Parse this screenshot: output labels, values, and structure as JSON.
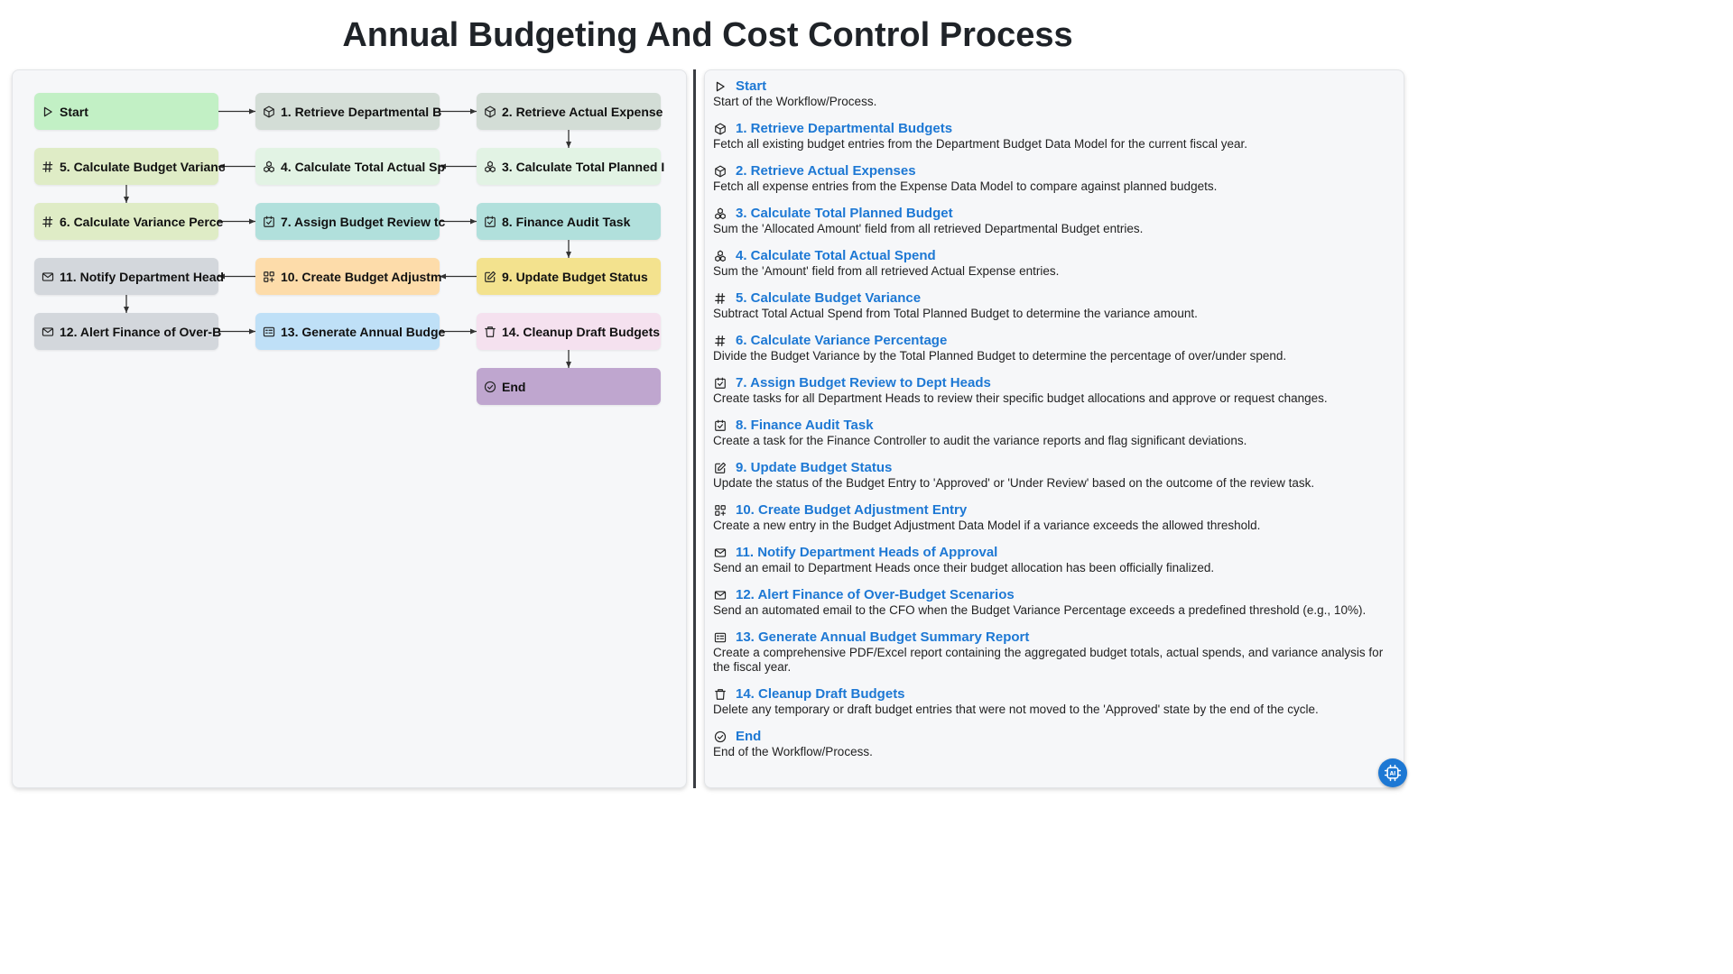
{
  "title": "Annual Budgeting And Cost Control Process",
  "nodes": [
    {
      "id": "start",
      "label": "Start",
      "icon": "play-icon",
      "color": "#c2f0c5"
    },
    {
      "id": "n1",
      "label": "1. Retrieve Departmental B",
      "icon": "cube-icon",
      "color": "#d3ddd6"
    },
    {
      "id": "n2",
      "label": "2. Retrieve Actual Expense",
      "icon": "cube-icon",
      "color": "#d3ddd6"
    },
    {
      "id": "n3",
      "label": "3. Calculate Total Planned I",
      "icon": "cluster-icon",
      "color": "#e2f3e4"
    },
    {
      "id": "n4",
      "label": "4. Calculate Total Actual Sp",
      "icon": "cluster-icon",
      "color": "#e2f3e4"
    },
    {
      "id": "n5",
      "label": "5. Calculate Budget Varianc",
      "icon": "hash-icon",
      "color": "#dfecc6"
    },
    {
      "id": "n6",
      "label": "6. Calculate Variance Perce",
      "icon": "hash-icon",
      "color": "#dfecc6"
    },
    {
      "id": "n7",
      "label": "7. Assign Budget Review tc",
      "icon": "checkbox-icon",
      "color": "#b1e0dc"
    },
    {
      "id": "n8",
      "label": "8. Finance Audit Task",
      "icon": "checkbox-icon",
      "color": "#b1e0dc"
    },
    {
      "id": "n9",
      "label": "9. Update Budget Status",
      "icon": "edit-icon",
      "color": "#f3e28e"
    },
    {
      "id": "n10",
      "label": "10. Create Budget Adjustm",
      "icon": "grid-plus-icon",
      "color": "#fddcaa"
    },
    {
      "id": "n11",
      "label": "11. Notify Department Head",
      "icon": "mail-icon",
      "color": "#d3d7dc"
    },
    {
      "id": "n12",
      "label": "12. Alert Finance of Over-B",
      "icon": "mail-icon",
      "color": "#d3d7dc"
    },
    {
      "id": "n13",
      "label": "13. Generate Annual Budge",
      "icon": "report-icon",
      "color": "#bfe0f7"
    },
    {
      "id": "n14",
      "label": "14. Cleanup Draft Budgets",
      "icon": "trash-icon",
      "color": "#f5e1ef"
    },
    {
      "id": "end",
      "label": "End",
      "icon": "check-circle-icon",
      "color": "#bfa6cf"
    }
  ],
  "edges": [
    [
      "start",
      "n1"
    ],
    [
      "n1",
      "n2"
    ],
    [
      "n2",
      "n3"
    ],
    [
      "n3",
      "n4"
    ],
    [
      "n4",
      "n5"
    ],
    [
      "n5",
      "n6"
    ],
    [
      "n6",
      "n7"
    ],
    [
      "n7",
      "n8"
    ],
    [
      "n8",
      "n9"
    ],
    [
      "n9",
      "n10"
    ],
    [
      "n10",
      "n11"
    ],
    [
      "n11",
      "n12"
    ],
    [
      "n12",
      "n13"
    ],
    [
      "n13",
      "n14"
    ],
    [
      "n14",
      "end"
    ]
  ],
  "steps": [
    {
      "icon": "play-icon",
      "title": "Start",
      "desc": "Start of the Workflow/Process."
    },
    {
      "icon": "cube-icon",
      "title": "1. Retrieve Departmental Budgets",
      "desc": "Fetch all existing budget entries from the Department Budget Data Model for the current fiscal year."
    },
    {
      "icon": "cube-icon",
      "title": "2. Retrieve Actual Expenses",
      "desc": "Fetch all expense entries from the Expense Data Model to compare against planned budgets."
    },
    {
      "icon": "cluster-icon",
      "title": "3. Calculate Total Planned Budget",
      "desc": "Sum the 'Allocated Amount' field from all retrieved Departmental Budget entries."
    },
    {
      "icon": "cluster-icon",
      "title": "4. Calculate Total Actual Spend",
      "desc": "Sum the 'Amount' field from all retrieved Actual Expense entries."
    },
    {
      "icon": "hash-icon",
      "title": "5. Calculate Budget Variance",
      "desc": "Subtract Total Actual Spend from Total Planned Budget to determine the variance amount."
    },
    {
      "icon": "hash-icon",
      "title": "6. Calculate Variance Percentage",
      "desc": "Divide the Budget Variance by the Total Planned Budget to determine the percentage of over/under spend."
    },
    {
      "icon": "checkbox-icon",
      "title": "7. Assign Budget Review to Dept Heads",
      "desc": "Create tasks for all Department Heads to review their specific budget allocations and approve or request changes."
    },
    {
      "icon": "checkbox-icon",
      "title": "8. Finance Audit Task",
      "desc": "Create a task for the Finance Controller to audit the variance reports and flag significant deviations."
    },
    {
      "icon": "edit-icon",
      "title": "9. Update Budget Status",
      "desc": "Update the status of the Budget Entry to 'Approved' or 'Under Review' based on the outcome of the review task."
    },
    {
      "icon": "grid-plus-icon",
      "title": "10. Create Budget Adjustment Entry",
      "desc": "Create a new entry in the Budget Adjustment Data Model if a variance exceeds the allowed threshold."
    },
    {
      "icon": "mail-icon",
      "title": "11. Notify Department Heads of Approval",
      "desc": "Send an email to Department Heads once their budget allocation has been officially finalized."
    },
    {
      "icon": "mail-icon",
      "title": "12. Alert Finance of Over-Budget Scenarios",
      "desc": "Send an automated email to the CFO when the Budget Variance Percentage exceeds a predefined threshold (e.g., 10%)."
    },
    {
      "icon": "report-icon",
      "title": "13. Generate Annual Budget Summary Report",
      "desc": "Create a comprehensive PDF/Excel report containing the aggregated budget totals, actual spends, and variance analysis for the fiscal year."
    },
    {
      "icon": "trash-icon",
      "title": "14. Cleanup Draft Budgets",
      "desc": "Delete any temporary or draft budget entries that were not moved to the 'Approved' state by the end of the cycle."
    },
    {
      "icon": "check-circle-icon",
      "title": "End",
      "desc": "End of the Workflow/Process."
    }
  ],
  "assistant_button": {
    "icon": "chip-icon"
  }
}
